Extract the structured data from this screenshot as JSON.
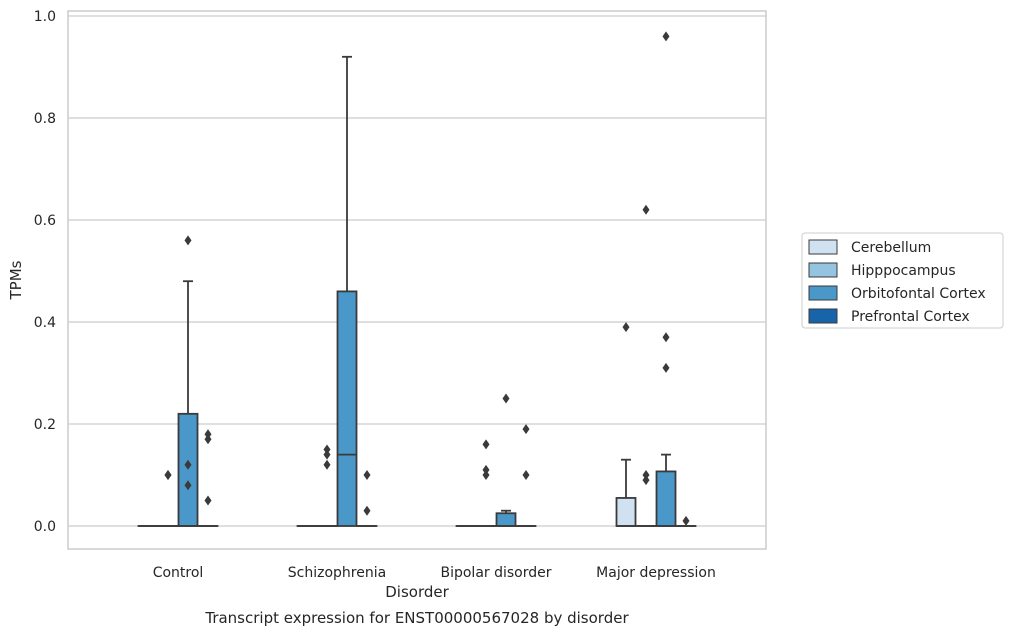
{
  "chart_data": {
    "type": "box",
    "xlabel": "Disorder",
    "ylabel": "TPMs",
    "caption": "Transcript expression for ENST00000567028 by disorder",
    "ylim": [
      -0.045,
      1.01
    ],
    "yticks": [
      "0.0",
      "0.2",
      "0.4",
      "0.6",
      "0.8",
      "1.0"
    ],
    "grid": "horizontal",
    "legend_position": "right",
    "categories": [
      "Control",
      "Schizophrenia",
      "Bipolar disorder",
      "Major depression"
    ],
    "series": [
      {
        "name": "Cerebellum",
        "color": "#d0e1f2"
      },
      {
        "name": "Hipppocampus",
        "color": "#94c4df"
      },
      {
        "name": "Orbitofontal Cortex",
        "color": "#4a98c9"
      },
      {
        "name": "Prefrontal Cortex",
        "color": "#1764ab"
      }
    ],
    "boxes": [
      {
        "category": "Control",
        "series": "Cerebellum",
        "q1": 0,
        "median": 0,
        "q3": 0,
        "whisker_low": 0,
        "whisker_high": 0,
        "outliers": []
      },
      {
        "category": "Control",
        "series": "Hipppocampus",
        "q1": 0,
        "median": 0,
        "q3": 0,
        "whisker_low": 0,
        "whisker_high": 0,
        "outliers": [
          0.1,
          0.1
        ]
      },
      {
        "category": "Control",
        "series": "Orbitofontal Cortex",
        "q1": 0,
        "median": 0,
        "q3": 0.22,
        "whisker_low": 0,
        "whisker_high": 0.48,
        "outliers": [
          0.56,
          0.12,
          0.08
        ]
      },
      {
        "category": "Control",
        "series": "Prefrontal Cortex",
        "q1": 0,
        "median": 0,
        "q3": 0,
        "whisker_low": 0,
        "whisker_high": 0,
        "outliers": [
          0.18,
          0.17,
          0.05
        ]
      },
      {
        "category": "Schizophrenia",
        "series": "Cerebellum",
        "q1": 0,
        "median": 0,
        "q3": 0,
        "whisker_low": 0,
        "whisker_high": 0,
        "outliers": []
      },
      {
        "category": "Schizophrenia",
        "series": "Hipppocampus",
        "q1": 0,
        "median": 0,
        "q3": 0,
        "whisker_low": 0,
        "whisker_high": 0,
        "outliers": [
          0.15,
          0.14,
          0.12
        ]
      },
      {
        "category": "Schizophrenia",
        "series": "Orbitofontal Cortex",
        "q1": 0,
        "median": 0.14,
        "q3": 0.46,
        "whisker_low": 0,
        "whisker_high": 0.92,
        "outliers": []
      },
      {
        "category": "Schizophrenia",
        "series": "Prefrontal Cortex",
        "q1": 0,
        "median": 0,
        "q3": 0,
        "whisker_low": 0,
        "whisker_high": 0,
        "outliers": [
          0.1,
          0.03
        ]
      },
      {
        "category": "Bipolar disorder",
        "series": "Cerebellum",
        "q1": 0,
        "median": 0,
        "q3": 0,
        "whisker_low": 0,
        "whisker_high": 0,
        "outliers": []
      },
      {
        "category": "Bipolar disorder",
        "series": "Hipppocampus",
        "q1": 0,
        "median": 0,
        "q3": 0,
        "whisker_low": 0,
        "whisker_high": 0,
        "outliers": [
          0.16,
          0.11,
          0.1
        ]
      },
      {
        "category": "Bipolar disorder",
        "series": "Orbitofontal Cortex",
        "q1": 0,
        "median": 0,
        "q3": 0.025,
        "whisker_low": 0,
        "whisker_high": 0.03,
        "outliers": [
          0.25
        ]
      },
      {
        "category": "Bipolar disorder",
        "series": "Prefrontal Cortex",
        "q1": 0,
        "median": 0,
        "q3": 0,
        "whisker_low": 0,
        "whisker_high": 0,
        "outliers": [
          0.19,
          0.1
        ]
      },
      {
        "category": "Major depression",
        "series": "Cerebellum",
        "q1": 0,
        "median": 0,
        "q3": 0.055,
        "whisker_low": 0,
        "whisker_high": 0.13,
        "outliers": [
          0.39
        ]
      },
      {
        "category": "Major depression",
        "series": "Hipppocampus",
        "q1": 0,
        "median": 0,
        "q3": 0,
        "whisker_low": 0,
        "whisker_high": 0,
        "outliers": [
          0.62,
          0.1,
          0.09
        ]
      },
      {
        "category": "Major depression",
        "series": "Orbitofontal Cortex",
        "q1": 0,
        "median": 0,
        "q3": 0.107,
        "whisker_low": 0,
        "whisker_high": 0.14,
        "outliers": [
          0.96,
          0.37,
          0.31
        ]
      },
      {
        "category": "Major depression",
        "series": "Prefrontal Cortex",
        "q1": 0,
        "median": 0,
        "q3": 0,
        "whisker_low": 0,
        "whisker_high": 0,
        "outliers": [
          0.01
        ]
      }
    ]
  }
}
